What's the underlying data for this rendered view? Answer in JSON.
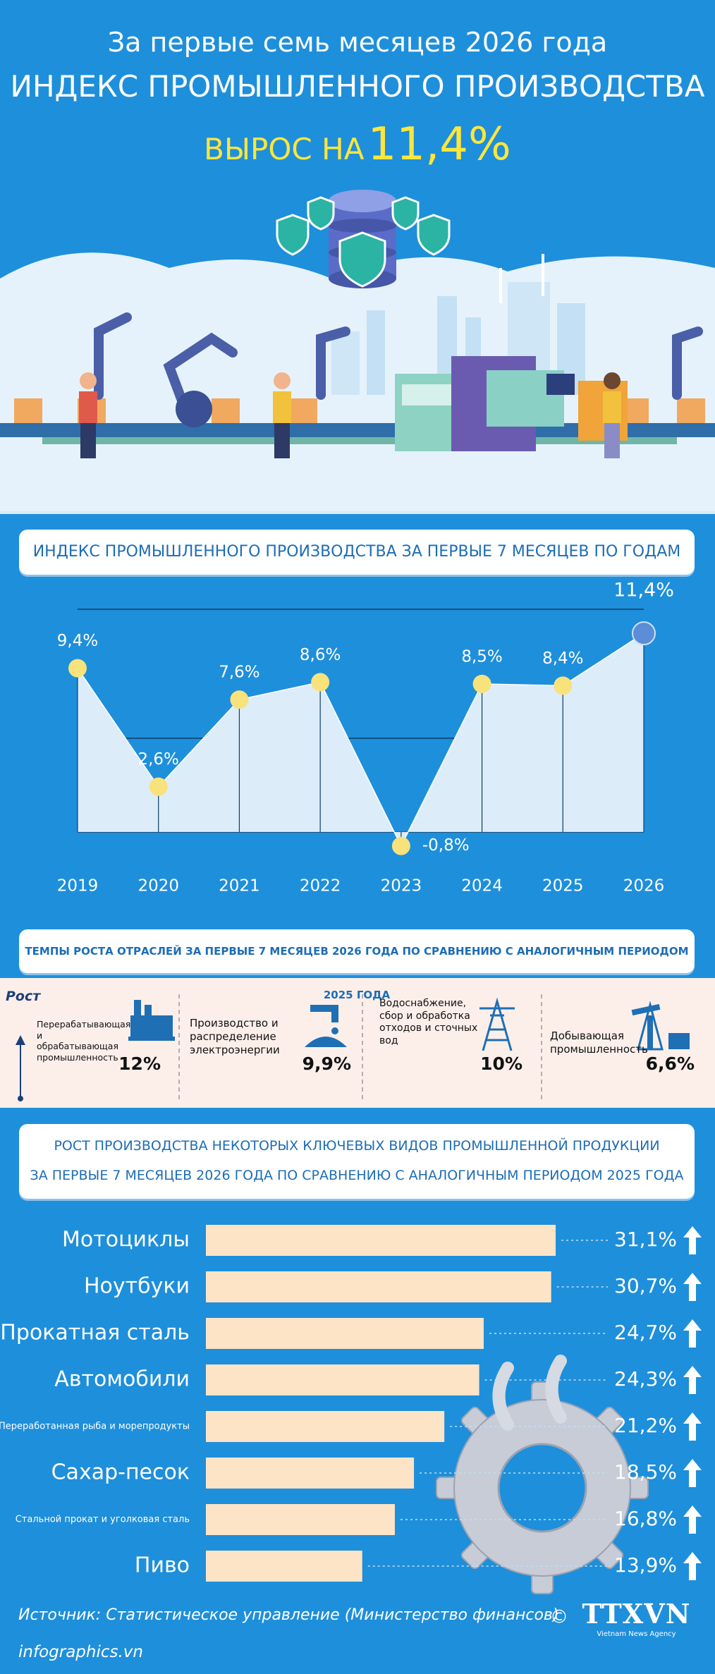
{
  "header": {
    "line1": "За первые семь месяцев 2026 года",
    "line2": "ИНДЕКС ПРОМЫШЛЕННОГО ПРОИЗВОДСТВА",
    "highlight_prefix": "ВЫРОС НА",
    "highlight_value": "11,4%"
  },
  "chart_data": [
    {
      "type": "line",
      "title": "ИНДЕКС ПРОМЫШЛЕННОГО ПРОИЗВОДСТВА ЗА ПЕРВЫЕ 7 МЕСЯЦЕВ ПО ГОДАМ",
      "categories": [
        "2019",
        "2020",
        "2021",
        "2022",
        "2023",
        "2024",
        "2025",
        "2026"
      ],
      "values": [
        9.4,
        2.6,
        7.6,
        8.6,
        -0.8,
        8.5,
        8.4,
        11.4
      ],
      "value_labels": [
        "9,4%",
        "2,6%",
        "7,6%",
        "8,6%",
        "-0,8%",
        "8,5%",
        "8,4%",
        "11,4%"
      ],
      "ylim": [
        -1.5,
        12.5
      ],
      "color": "#f7e27c",
      "highlight_color": "#5b8ed6",
      "area_color": "#dcedf9"
    },
    {
      "type": "barh",
      "title": "РОСТ ПРОИЗВОДСТВА НЕКОТОРЫХ КЛЮЧЕВЫХ ВИДОВ ПРОМЫШЛЕННОЙ ПРОДУКЦИИ",
      "subtitle": "ЗА ПЕРВЫЕ 7 МЕСЯЦЕВ 2026 ГОДА ПО СРАВНЕНИЮ С АНАЛОГИЧНЫМ ПЕРИОДОМ 2025 ГОДА",
      "categories": [
        "Мотоциклы",
        "Ноутбуки",
        "Прокатная сталь",
        "Автомобили",
        "Переработанная рыба и морепродукты",
        "Сахар-песок",
        "Стальной прокат и уголковая сталь",
        "Пиво"
      ],
      "values": [
        31.1,
        30.7,
        24.7,
        24.3,
        21.2,
        18.5,
        16.8,
        13.9
      ],
      "value_labels": [
        "31,1%",
        "30,7%",
        "24,7%",
        "24,3%",
        "21,2%",
        "18,5%",
        "16,8%",
        "13,9%"
      ],
      "xlim": [
        0,
        40
      ],
      "color": "#fde4c6"
    }
  ],
  "sectors": {
    "title": "ТЕМПЫ РОСТА ОТРАСЛЕЙ ЗА ПЕРВЫЕ 7 МЕСЯЦЕВ 2026 ГОДА ПО СРАВНЕНИЮ С АНАЛОГИЧНЫМ ПЕРИОДОМ 2025 ГОДА",
    "axis_label": "Рост",
    "items": [
      {
        "name": "Перерабатывающая и обрабатывающая промышленность",
        "value": "12%"
      },
      {
        "name": "Производство и распределение электроэнергии",
        "value": "9,9%"
      },
      {
        "name": "Водоснабжение, сбор и обработка отходов и сточных вод",
        "value": "10%"
      },
      {
        "name": "Добывающая промышленность",
        "value": "6,6%"
      }
    ]
  },
  "footer": {
    "source": "Источник: Статистическое управление (Министерство финансов)",
    "site": "infographics.vn",
    "logo": "TTXVN",
    "logo_caption": "Vietnam News Agency"
  }
}
